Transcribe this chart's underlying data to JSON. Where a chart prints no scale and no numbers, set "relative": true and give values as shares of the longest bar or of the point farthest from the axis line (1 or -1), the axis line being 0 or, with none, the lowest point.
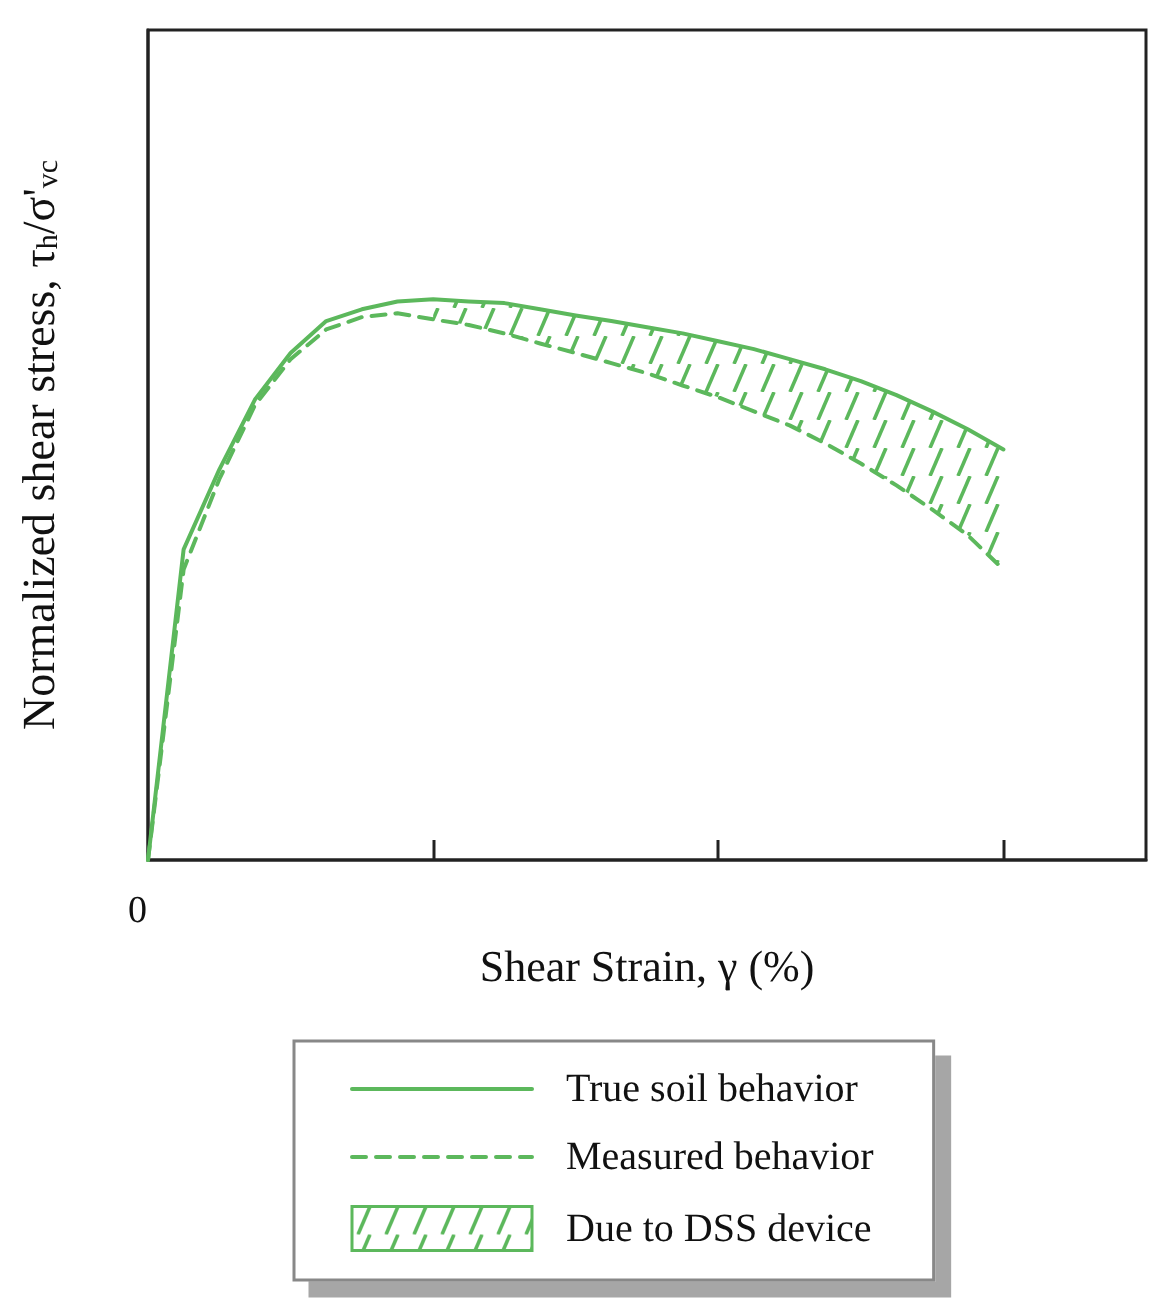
{
  "chart_data": {
    "type": "line",
    "relative": true,
    "xlabel": "Shear Strain, γ (%)",
    "ylabel": "Normalized shear stress, τ$_{h}$/σ'$_{vc}$",
    "annotations": [
      "0"
    ],
    "legend": "bottom",
    "grid": false,
    "categories": [
      null,
      null,
      null,
      null,
      null,
      null,
      null,
      null,
      null,
      null,
      null,
      null,
      null,
      null,
      null,
      null,
      null,
      null,
      null,
      null,
      null,
      null,
      null,
      null,
      null,
      null,
      null,
      null,
      null
    ],
    "series": [
      {
        "name": "True soil behavior",
        "color": "#5cb85c",
        "line_style": "solid",
        "values": [
          0,
          0.554,
          0.696,
          0.821,
          0.904,
          0.961,
          0.982,
          0.996,
          1.0,
          0.996,
          0.993,
          0.982,
          0.971,
          0.961,
          0.95,
          0.939,
          0.925,
          0.911,
          0.893,
          0.875,
          0.854,
          0.829,
          0.8,
          0.768,
          0.732,
          null,
          null,
          null,
          null
        ]
      },
      {
        "name": "Measured behavior",
        "color": "#5cb85c",
        "line_style": "dashed",
        "values": [
          0,
          0.518,
          0.679,
          0.811,
          0.893,
          0.946,
          0.968,
          0.975,
          0.964,
          0.954,
          0.939,
          0.921,
          0.904,
          0.886,
          0.868,
          0.846,
          0.825,
          0.8,
          0.775,
          0.743,
          0.707,
          0.668,
          0.625,
          0.579,
          0.518,
          null,
          null,
          null,
          null
        ]
      },
      {
        "name": "Due to DSS device",
        "type": "area",
        "color": "#5cb85c",
        "values": [
          null,
          null,
          null,
          null,
          null,
          null,
          null,
          null,
          1.0,
          0.996,
          0.993,
          0.982,
          0.971,
          0.961,
          0.95,
          0.939,
          0.925,
          0.911,
          0.893,
          0.875,
          0.854,
          0.829,
          0.8,
          0.768,
          0.732,
          null,
          null,
          null,
          null
        ]
      }
    ]
  }
}
